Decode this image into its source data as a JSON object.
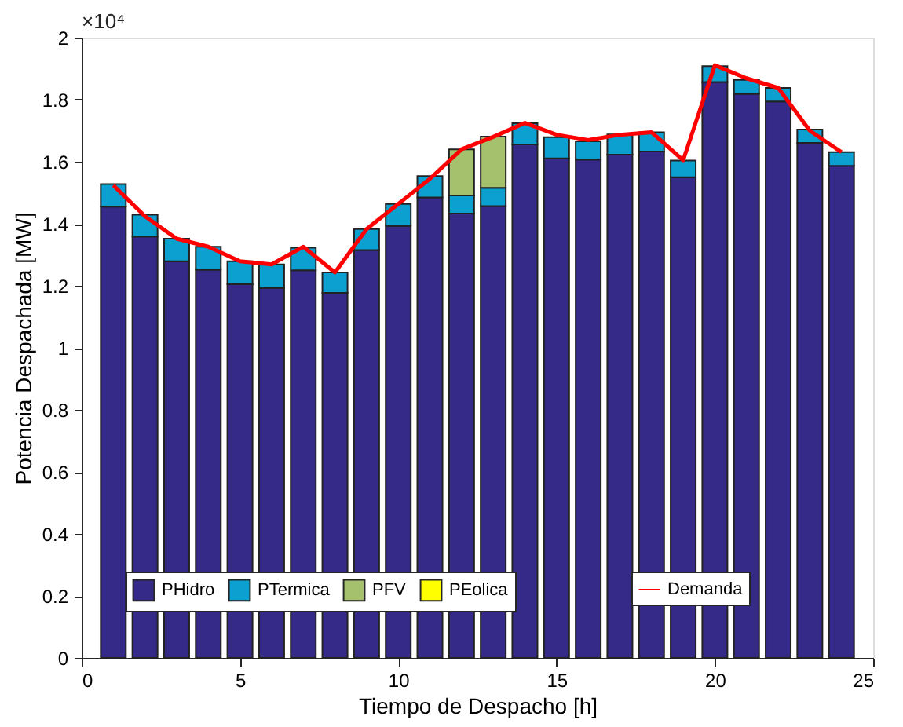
{
  "chart_data": {
    "type": "bar",
    "stacked": true,
    "xlabel": "Tiempo de Despacho [h]",
    "ylabel": "Potencia Despachada [MW]",
    "annotations": [
      "×10⁴"
    ],
    "x": [
      1,
      2,
      3,
      4,
      5,
      6,
      7,
      8,
      9,
      10,
      11,
      12,
      13,
      14,
      15,
      16,
      17,
      18,
      19,
      20,
      21,
      22,
      23,
      24
    ],
    "xlim": [
      0,
      25
    ],
    "xticks": [
      0,
      5,
      10,
      15,
      20,
      25
    ],
    "ylim": [
      0,
      2
    ],
    "yticks": [
      0,
      0.2,
      0.4,
      0.6,
      0.8,
      1,
      1.2,
      1.4,
      1.6,
      1.8,
      2
    ],
    "grid": false,
    "legend": "bottom",
    "series": [
      {
        "name": "PHidro",
        "color": "#352a87",
        "values": [
          1.455,
          1.359,
          1.279,
          1.252,
          1.205,
          1.193,
          1.25,
          1.177,
          1.315,
          1.393,
          1.485,
          1.433,
          1.457,
          1.656,
          1.611,
          1.607,
          1.623,
          1.633,
          1.55,
          1.857,
          1.819,
          1.794,
          1.661,
          1.587
        ]
      },
      {
        "name": "PTermica",
        "color": "#0ca0d0",
        "values": [
          0.073,
          0.07,
          0.073,
          0.074,
          0.074,
          0.076,
          0.073,
          0.066,
          0.068,
          0.071,
          0.069,
          0.058,
          0.059,
          0.068,
          0.068,
          0.059,
          0.065,
          0.062,
          0.054,
          0.051,
          0.045,
          0.044,
          0.043,
          0.044
        ]
      },
      {
        "name": "PFV",
        "color": "#a6c16d",
        "values": [
          0,
          0,
          0,
          0,
          0,
          0,
          0,
          0,
          0,
          0,
          0,
          0.149,
          0.165,
          0,
          0,
          0,
          0,
          0,
          0,
          0,
          0,
          0,
          0,
          0
        ]
      },
      {
        "name": "PEolica",
        "color": "#ffff00",
        "values": [
          0,
          0,
          0,
          0,
          0,
          0,
          0,
          0,
          0,
          0,
          0,
          0,
          0,
          0,
          0,
          0,
          0,
          0,
          0,
          0,
          0,
          0,
          0,
          0
        ]
      },
      {
        "name": "Demanda",
        "type": "line",
        "color": "#ff0000",
        "values": [
          1.524,
          1.424,
          1.352,
          1.326,
          1.279,
          1.269,
          1.326,
          1.243,
          1.383,
          1.464,
          1.545,
          1.64,
          1.68,
          1.725,
          1.687,
          1.67,
          1.687,
          1.695,
          1.605,
          1.911,
          1.869,
          1.838,
          1.7,
          1.631
        ]
      }
    ]
  }
}
